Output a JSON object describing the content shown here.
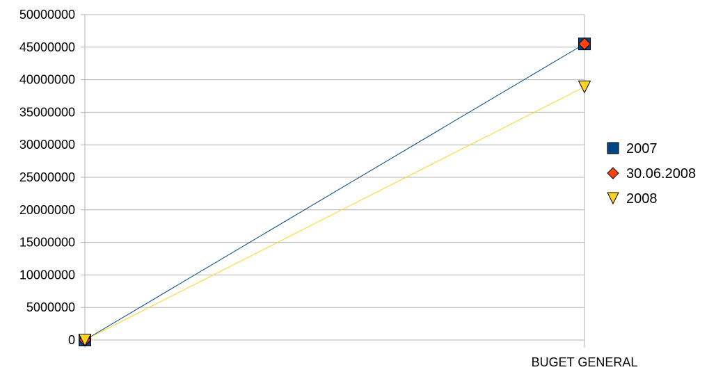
{
  "chart_data": {
    "type": "line",
    "categories": [
      "",
      "BUGET GENERAL"
    ],
    "series": [
      {
        "name": "2007",
        "values": [
          0,
          45500000
        ],
        "color": "#004586",
        "marker": "square",
        "line": true
      },
      {
        "name": "30.06.2008",
        "values": [
          0,
          45500000
        ],
        "color": "#ff420e",
        "marker": "diamond",
        "line": false
      },
      {
        "name": "2008",
        "values": [
          0,
          38900000
        ],
        "color": "#ffd320",
        "marker": "triangle-down",
        "line": true
      }
    ],
    "ylim": [
      0,
      50000000
    ],
    "yticks": [
      "0",
      "5000000",
      "10000000",
      "15000000",
      "20000000",
      "25000000",
      "30000000",
      "35000000",
      "40000000",
      "45000000",
      "50000000"
    ],
    "grid": true,
    "legend_position": "right",
    "title": "",
    "xlabel": "",
    "ylabel": ""
  }
}
